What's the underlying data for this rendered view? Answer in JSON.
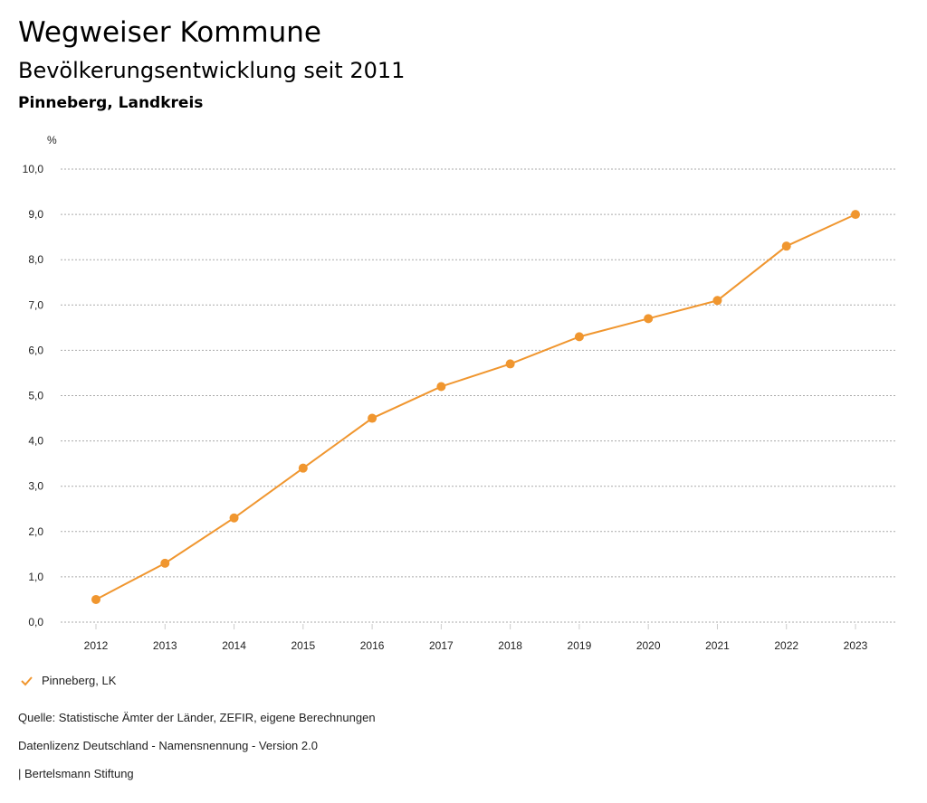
{
  "header": {
    "title": "Wegweiser Kommune",
    "subtitle": "Bevölkerungsentwicklung seit 2011",
    "region": "Pinneberg, Landkreis"
  },
  "chart_data": {
    "type": "line",
    "ylabel": "%",
    "ylim": [
      0,
      10
    ],
    "yticks": [
      "0,0",
      "1,0",
      "2,0",
      "3,0",
      "4,0",
      "5,0",
      "6,0",
      "7,0",
      "8,0",
      "9,0",
      "10,0"
    ],
    "categories": [
      "2012",
      "2013",
      "2014",
      "2015",
      "2016",
      "2017",
      "2018",
      "2019",
      "2020",
      "2021",
      "2022",
      "2023"
    ],
    "series": [
      {
        "name": "Pinneberg, LK",
        "color": "#f0962f",
        "values": [
          0.5,
          1.3,
          2.3,
          3.4,
          4.5,
          5.2,
          5.7,
          6.3,
          6.7,
          7.1,
          8.3,
          9.0
        ]
      }
    ],
    "grid": true,
    "legend": "bottom-left"
  },
  "footer": {
    "source": "Quelle: Statistische Ämter der Länder, ZEFIR, eigene Berechnungen",
    "license": "Datenlizenz Deutschland - Namensnennung - Version 2.0",
    "publisher": "| Bertelsmann Stiftung"
  }
}
